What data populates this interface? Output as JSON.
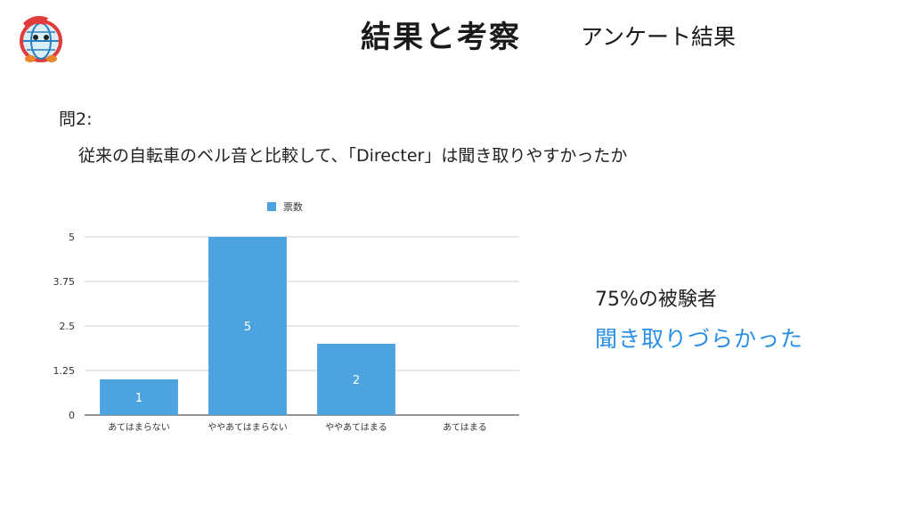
{
  "header": {
    "title": "結果と考察",
    "subtitle": "アンケート結果"
  },
  "logo": {
    "icon": "globe-mascot-logo"
  },
  "question": {
    "number": "問2:",
    "text": "従来の自転車のベル音と比較して、「Directer」は聞き取りやすかったか"
  },
  "result": {
    "percent_text": "75%の被験者",
    "highlight_text": "聞き取りづらかった",
    "highlight_color": "#2b8fe6"
  },
  "chart_data": {
    "type": "bar",
    "categories": [
      "あてはまらない",
      "ややあてはまらない",
      "ややあてはまる",
      "あてはまる"
    ],
    "series": [
      {
        "name": "票数",
        "values": [
          1,
          5,
          2,
          0
        ],
        "color": "#4da3e0"
      }
    ],
    "y_ticks": [
      "0",
      "1.25",
      "2.5",
      "3.75",
      "5"
    ],
    "ylim": [
      0,
      5
    ],
    "grid": true,
    "legend_position": "top-center",
    "data_labels": [
      "1",
      "5",
      "2",
      ""
    ]
  }
}
